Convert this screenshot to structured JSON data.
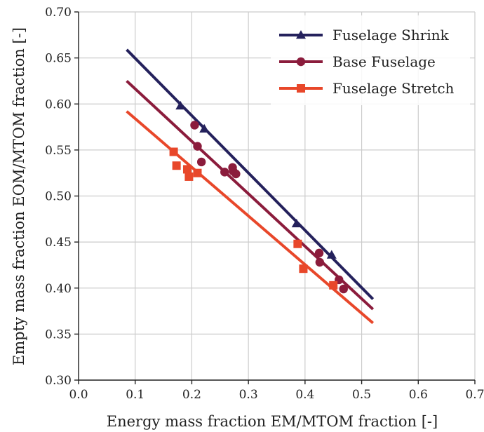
{
  "chart_data": {
    "type": "scatter",
    "xlabel": "Energy mass fraction EM/MTOM fraction [-]",
    "ylabel": "Empty mass fraction EOM/MTOM fraction [-]",
    "xlim": [
      0.0,
      0.7
    ],
    "ylim": [
      0.3,
      0.7
    ],
    "xticks": [
      "0.0",
      "0.1",
      "0.2",
      "0.3",
      "0.4",
      "0.5",
      "0.6",
      "0.7"
    ],
    "yticks": [
      "0.30",
      "0.35",
      "0.40",
      "0.45",
      "0.50",
      "0.55",
      "0.60",
      "0.65",
      "0.70"
    ],
    "grid": true,
    "legend_position": "top-right",
    "series": [
      {
        "name": "Fuselage Shrink",
        "color": "#24215c",
        "marker": "triangle",
        "points": [
          [
            0.18,
            0.598
          ],
          [
            0.222,
            0.573
          ],
          [
            0.385,
            0.47
          ],
          [
            0.447,
            0.436
          ]
        ],
        "fit_line": [
          [
            0.085,
            0.659
          ],
          [
            0.52,
            0.388
          ]
        ]
      },
      {
        "name": "Base Fuselage",
        "color": "#8b1c3c",
        "marker": "circle",
        "points": [
          [
            0.205,
            0.577
          ],
          [
            0.21,
            0.554
          ],
          [
            0.217,
            0.537
          ],
          [
            0.258,
            0.526
          ],
          [
            0.272,
            0.531
          ],
          [
            0.273,
            0.527
          ],
          [
            0.278,
            0.524
          ],
          [
            0.425,
            0.438
          ],
          [
            0.426,
            0.428
          ],
          [
            0.46,
            0.409
          ],
          [
            0.468,
            0.399
          ]
        ],
        "fit_line": [
          [
            0.085,
            0.625
          ],
          [
            0.52,
            0.377
          ]
        ]
      },
      {
        "name": "Fuselage Stretch",
        "color": "#e8472a",
        "marker": "square",
        "points": [
          [
            0.168,
            0.548
          ],
          [
            0.173,
            0.533
          ],
          [
            0.192,
            0.529
          ],
          [
            0.195,
            0.521
          ],
          [
            0.21,
            0.525
          ],
          [
            0.387,
            0.448
          ],
          [
            0.397,
            0.421
          ],
          [
            0.45,
            0.403
          ]
        ],
        "fit_line": [
          [
            0.085,
            0.592
          ],
          [
            0.52,
            0.362
          ]
        ]
      }
    ]
  }
}
